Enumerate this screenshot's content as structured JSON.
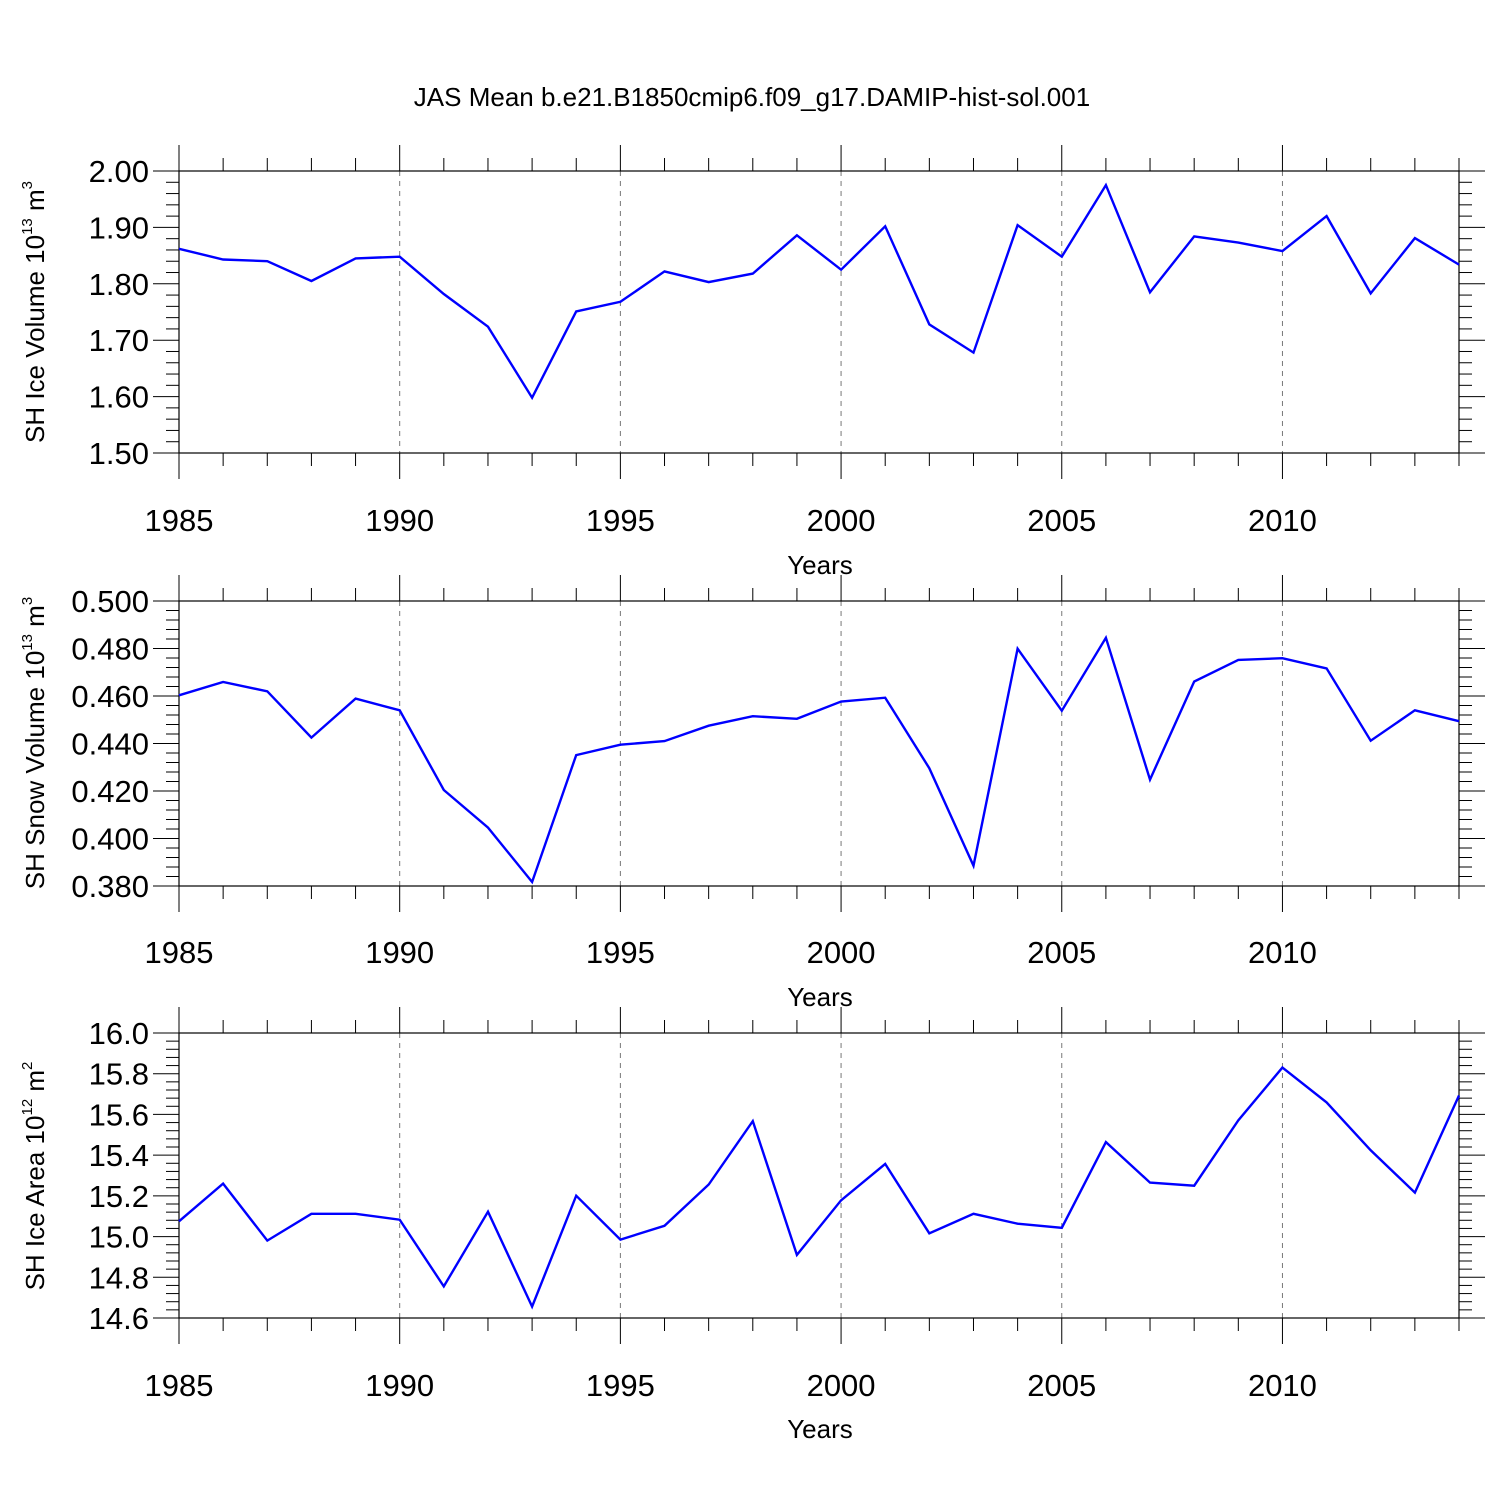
{
  "chart_data": [
    {
      "type": "line",
      "title": "JAS Mean b.e21.B1850cmip6.f09_g17.DAMIP-hist-sol.001",
      "ylabel": {
        "text": "SH Ice Volume 10",
        "exponent": "13",
        "unit": " m",
        "unit_exponent": "3"
      },
      "xlabel": "Years",
      "xlim": [
        1985,
        2014
      ],
      "ylim": [
        1.5,
        2.0
      ],
      "x_ticks": [
        1985,
        1990,
        1995,
        2000,
        2005,
        2010
      ],
      "y_ticks": [
        "1.50",
        "1.60",
        "1.70",
        "1.80",
        "1.90",
        "2.00"
      ],
      "y_tick_values": [
        1.5,
        1.6,
        1.7,
        1.8,
        1.9,
        2.0
      ],
      "grid": "vertical dashed at major x ticks",
      "line_color": "#0000ff",
      "x": [
        1985,
        1986,
        1987,
        1988,
        1989,
        1990,
        1991,
        1992,
        1993,
        1994,
        1995,
        1996,
        1997,
        1998,
        1999,
        2000,
        2001,
        2002,
        2003,
        2004,
        2005,
        2006,
        2007,
        2008,
        2009,
        2010,
        2011,
        2012,
        2013,
        2014
      ],
      "values": [
        1.862,
        1.843,
        1.84,
        1.805,
        1.845,
        1.848,
        1.782,
        1.724,
        1.598,
        1.751,
        1.768,
        1.822,
        1.803,
        1.818,
        1.886,
        1.825,
        1.902,
        1.728,
        1.678,
        1.904,
        1.848,
        1.975,
        1.785,
        1.884,
        1.873,
        1.858,
        1.92,
        1.783,
        1.881,
        1.834
      ]
    },
    {
      "type": "line",
      "ylabel": {
        "text": "SH Snow Volume 10",
        "exponent": "13",
        "unit": " m",
        "unit_exponent": "3"
      },
      "xlabel": "Years",
      "xlim": [
        1985,
        2014
      ],
      "ylim": [
        0.38,
        0.5
      ],
      "x_ticks": [
        1985,
        1990,
        1995,
        2000,
        2005,
        2010
      ],
      "y_ticks": [
        "0.380",
        "0.400",
        "0.420",
        "0.440",
        "0.460",
        "0.480",
        "0.500"
      ],
      "y_tick_values": [
        0.38,
        0.4,
        0.42,
        0.44,
        0.46,
        0.48,
        0.5
      ],
      "grid": "vertical dashed at major x ticks",
      "line_color": "#0000ff",
      "x": [
        1985,
        1986,
        1987,
        1988,
        1989,
        1990,
        1991,
        1992,
        1993,
        1994,
        1995,
        1996,
        1997,
        1998,
        1999,
        2000,
        2001,
        2002,
        2003,
        2004,
        2005,
        2006,
        2007,
        2008,
        2009,
        2010,
        2011,
        2012,
        2013,
        2014
      ],
      "values": [
        0.4603,
        0.4659,
        0.462,
        0.4425,
        0.4589,
        0.454,
        0.4204,
        0.4046,
        0.3817,
        0.4351,
        0.4395,
        0.441,
        0.4475,
        0.4515,
        0.4504,
        0.4577,
        0.4593,
        0.4296,
        0.3885,
        0.4799,
        0.4538,
        0.4845,
        0.4248,
        0.4661,
        0.4752,
        0.4759,
        0.4716,
        0.4412,
        0.454,
        0.4494
      ]
    },
    {
      "type": "line",
      "ylabel": {
        "text": "SH Ice Area 10",
        "exponent": "12",
        "unit": " m",
        "unit_exponent": "2"
      },
      "xlabel": "Years",
      "xlim": [
        1985,
        2014
      ],
      "ylim": [
        14.6,
        16.0
      ],
      "x_ticks": [
        1985,
        1990,
        1995,
        2000,
        2005,
        2010
      ],
      "y_ticks": [
        "14.6",
        "14.8",
        "15.0",
        "15.2",
        "15.4",
        "15.6",
        "15.8",
        "16.0"
      ],
      "y_tick_values": [
        14.6,
        14.8,
        15.0,
        15.2,
        15.4,
        15.6,
        15.8,
        16.0
      ],
      "grid": "vertical dashed at major x ticks",
      "line_color": "#0000ff",
      "x": [
        1985,
        1986,
        1987,
        1988,
        1989,
        1990,
        1991,
        1992,
        1993,
        1994,
        1995,
        1996,
        1997,
        1998,
        1999,
        2000,
        2001,
        2002,
        2003,
        2004,
        2005,
        2006,
        2007,
        2008,
        2009,
        2010,
        2011,
        2012,
        2013,
        2014
      ],
      "values": [
        15.075,
        15.26,
        14.98,
        15.112,
        15.112,
        15.083,
        14.755,
        15.122,
        14.656,
        15.201,
        14.985,
        15.053,
        15.256,
        15.567,
        14.91,
        15.178,
        15.357,
        15.016,
        15.112,
        15.063,
        15.043,
        15.464,
        15.265,
        15.25,
        15.571,
        15.83,
        15.659,
        15.424,
        15.216,
        15.693
      ]
    }
  ]
}
